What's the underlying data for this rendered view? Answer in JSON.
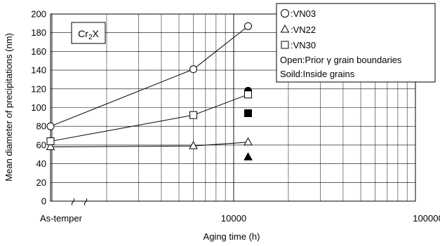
{
  "chart_data": {
    "type": "scatter",
    "xlabel": "Aging time (h)",
    "ylabel": "Mean diameter of precipitations (nm)",
    "x_scale": "log (with broken as-temper origin)",
    "xlim": [
      1000,
      100000
    ],
    "ylim": [
      0,
      200
    ],
    "y_ticks": [
      0,
      20,
      40,
      60,
      80,
      100,
      120,
      140,
      160,
      180,
      200
    ],
    "x_tick_labels": [
      "As-temper",
      "10000",
      "100000"
    ],
    "grid": true,
    "phase_label": {
      "main": "Cr",
      "sub": "2",
      "tail": "X"
    },
    "legend_position": "top-right",
    "legend": {
      "vn03": ":VN03",
      "vn22": ":VN22",
      "vn30": ":VN30",
      "open_note": "Open:Prior γ grain boundaries",
      "solid_note": "Soild:Inside grains"
    },
    "series": [
      {
        "name": "VN03",
        "marker": "circle",
        "fill": "open",
        "line": true,
        "points": [
          {
            "x": "As-temper",
            "y": 80
          },
          {
            "x": 6000,
            "y": 141
          },
          {
            "x": 12000,
            "y": 187
          }
        ]
      },
      {
        "name": "VN03",
        "marker": "circle",
        "fill": "solid",
        "line": false,
        "points": [
          {
            "x": 12000,
            "y": 118
          }
        ]
      },
      {
        "name": "VN22",
        "marker": "triangle",
        "fill": "open",
        "line": true,
        "points": [
          {
            "x": "As-temper",
            "y": 58
          },
          {
            "x": 6000,
            "y": 59
          },
          {
            "x": 12000,
            "y": 63
          }
        ]
      },
      {
        "name": "VN22",
        "marker": "triangle",
        "fill": "solid",
        "line": false,
        "points": [
          {
            "x": 12000,
            "y": 47
          }
        ]
      },
      {
        "name": "VN30",
        "marker": "square",
        "fill": "open",
        "line": true,
        "points": [
          {
            "x": "As-temper",
            "y": 64
          },
          {
            "x": 6000,
            "y": 92
          },
          {
            "x": 12000,
            "y": 114
          }
        ]
      },
      {
        "name": "VN30",
        "marker": "square",
        "fill": "solid",
        "line": false,
        "points": [
          {
            "x": 12000,
            "y": 94
          }
        ]
      }
    ]
  }
}
